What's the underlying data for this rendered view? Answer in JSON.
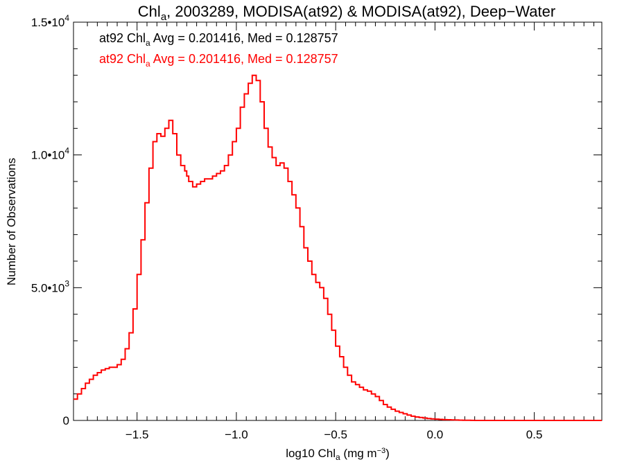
{
  "chart_data": {
    "type": "line",
    "title": {
      "pre": "Chl",
      "sub": "a",
      "post": ", 2003289, MODISA(at92) & MODISA(at92), Deep−Water"
    },
    "xlabel": {
      "pre": "log10 Chl",
      "sub": "a",
      "mid": " (mg m",
      "sup": "−3",
      "post": ")"
    },
    "ylabel": "Number of Observations",
    "xlim": [
      -1.82,
      0.84
    ],
    "ylim": [
      0,
      15000
    ],
    "x_ticks": [
      {
        "value": -1.5,
        "label": "−1.5"
      },
      {
        "value": -1.0,
        "label": "−1.0"
      },
      {
        "value": -0.5,
        "label": "−0.5"
      },
      {
        "value": 0.0,
        "label": "0.0"
      },
      {
        "value": 0.5,
        "label": "0.5"
      }
    ],
    "y_ticks": [
      {
        "value": 0,
        "mant": "0",
        "exp": ""
      },
      {
        "value": 5000,
        "mant": "5.0•10",
        "exp": "3"
      },
      {
        "value": 10000,
        "mant": "1.0•10",
        "exp": "4"
      },
      {
        "value": 15000,
        "mant": "1.5•10",
        "exp": "4"
      }
    ],
    "annotations": [
      {
        "pre": "at92 Chl",
        "sub": "a",
        "post": " Avg = 0.201416, Med = 0.128757",
        "color": "#000000"
      },
      {
        "pre": "at92 Chl",
        "sub": "a",
        "post": " Avg = 0.201416, Med = 0.128757",
        "color": "#ff0000"
      }
    ],
    "series": [
      {
        "color": "#ff0000",
        "step": true,
        "x": [
          -1.82,
          -1.8,
          -1.78,
          -1.76,
          -1.74,
          -1.72,
          -1.7,
          -1.68,
          -1.66,
          -1.64,
          -1.62,
          -1.6,
          -1.58,
          -1.56,
          -1.54,
          -1.52,
          -1.5,
          -1.48,
          -1.46,
          -1.44,
          -1.42,
          -1.4,
          -1.38,
          -1.36,
          -1.34,
          -1.32,
          -1.3,
          -1.28,
          -1.26,
          -1.25,
          -1.24,
          -1.22,
          -1.2,
          -1.18,
          -1.16,
          -1.14,
          -1.12,
          -1.1,
          -1.08,
          -1.06,
          -1.04,
          -1.02,
          -1.0,
          -0.98,
          -0.96,
          -0.94,
          -0.92,
          -0.9,
          -0.88,
          -0.86,
          -0.84,
          -0.82,
          -0.8,
          -0.79,
          -0.78,
          -0.76,
          -0.74,
          -0.72,
          -0.7,
          -0.68,
          -0.66,
          -0.64,
          -0.62,
          -0.6,
          -0.58,
          -0.56,
          -0.54,
          -0.52,
          -0.5,
          -0.48,
          -0.46,
          -0.44,
          -0.42,
          -0.4,
          -0.38,
          -0.36,
          -0.34,
          -0.32,
          -0.3,
          -0.28,
          -0.26,
          -0.24,
          -0.22,
          -0.2,
          -0.18,
          -0.16,
          -0.14,
          -0.12,
          -0.1,
          -0.08,
          -0.06,
          -0.04,
          -0.02,
          0.0,
          0.02,
          0.04,
          0.06,
          0.08,
          0.1,
          0.12,
          0.14,
          0.16,
          0.18,
          0.2,
          0.25,
          0.3,
          0.35,
          0.4,
          0.45,
          0.5,
          0.55,
          0.6,
          0.65,
          0.7,
          0.75,
          0.8,
          0.84
        ],
        "y": [
          800,
          1000,
          1200,
          1400,
          1550,
          1700,
          1800,
          1900,
          1950,
          2000,
          2000,
          2100,
          2300,
          2700,
          3300,
          4200,
          5500,
          6800,
          8200,
          9500,
          10500,
          10800,
          10700,
          11000,
          11300,
          10800,
          10000,
          9600,
          9400,
          9200,
          9000,
          8800,
          8900,
          9000,
          9100,
          9100,
          9200,
          9300,
          9400,
          9600,
          10000,
          10500,
          11000,
          11800,
          12300,
          12700,
          13000,
          12800,
          12000,
          11000,
          10300,
          9900,
          9600,
          9600,
          9700,
          9500,
          9000,
          8500,
          8000,
          7300,
          6500,
          6000,
          5500,
          5200,
          5000,
          4600,
          4000,
          3400,
          2800,
          2400,
          2000,
          1700,
          1450,
          1350,
          1250,
          1150,
          1100,
          1000,
          900,
          750,
          600,
          500,
          420,
          350,
          300,
          250,
          200,
          160,
          130,
          110,
          90,
          70,
          60,
          50,
          40,
          30,
          25,
          20,
          15,
          10,
          8,
          5,
          3,
          0,
          0,
          0,
          0,
          0,
          0,
          0,
          0,
          0,
          0,
          0,
          0,
          0,
          0
        ]
      }
    ],
    "grid": false,
    "legend": "none"
  }
}
